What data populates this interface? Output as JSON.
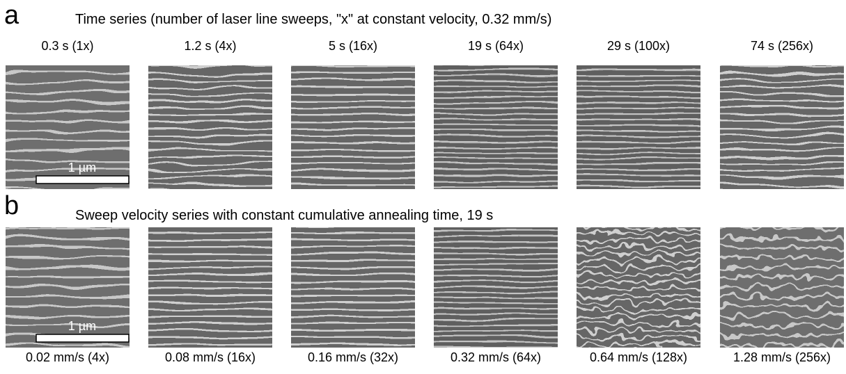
{
  "panels": [
    {
      "letter": "a",
      "title": "Time series (number of laser line sweeps, \"x\" at constant velocity, 0.32 mm/s)",
      "labels": [
        "0.3 s (1x)",
        "1.2 s (4x)",
        "5 s (16x)",
        "19 s (64x)",
        "29 s (100x)",
        "74 s (256x)"
      ],
      "scale_bar": "1 µm"
    },
    {
      "letter": "b",
      "title": "Sweep velocity series with constant cumulative annealing time, 19 s",
      "labels": [
        "0.02 mm/s (4x)",
        "0.08 mm/s (16x)",
        "0.16 mm/s (32x)",
        "0.32 mm/s (64x)",
        "0.64 mm/s (128x)",
        "1.28 mm/s (256x)"
      ],
      "scale_bar": "1 µm"
    }
  ]
}
